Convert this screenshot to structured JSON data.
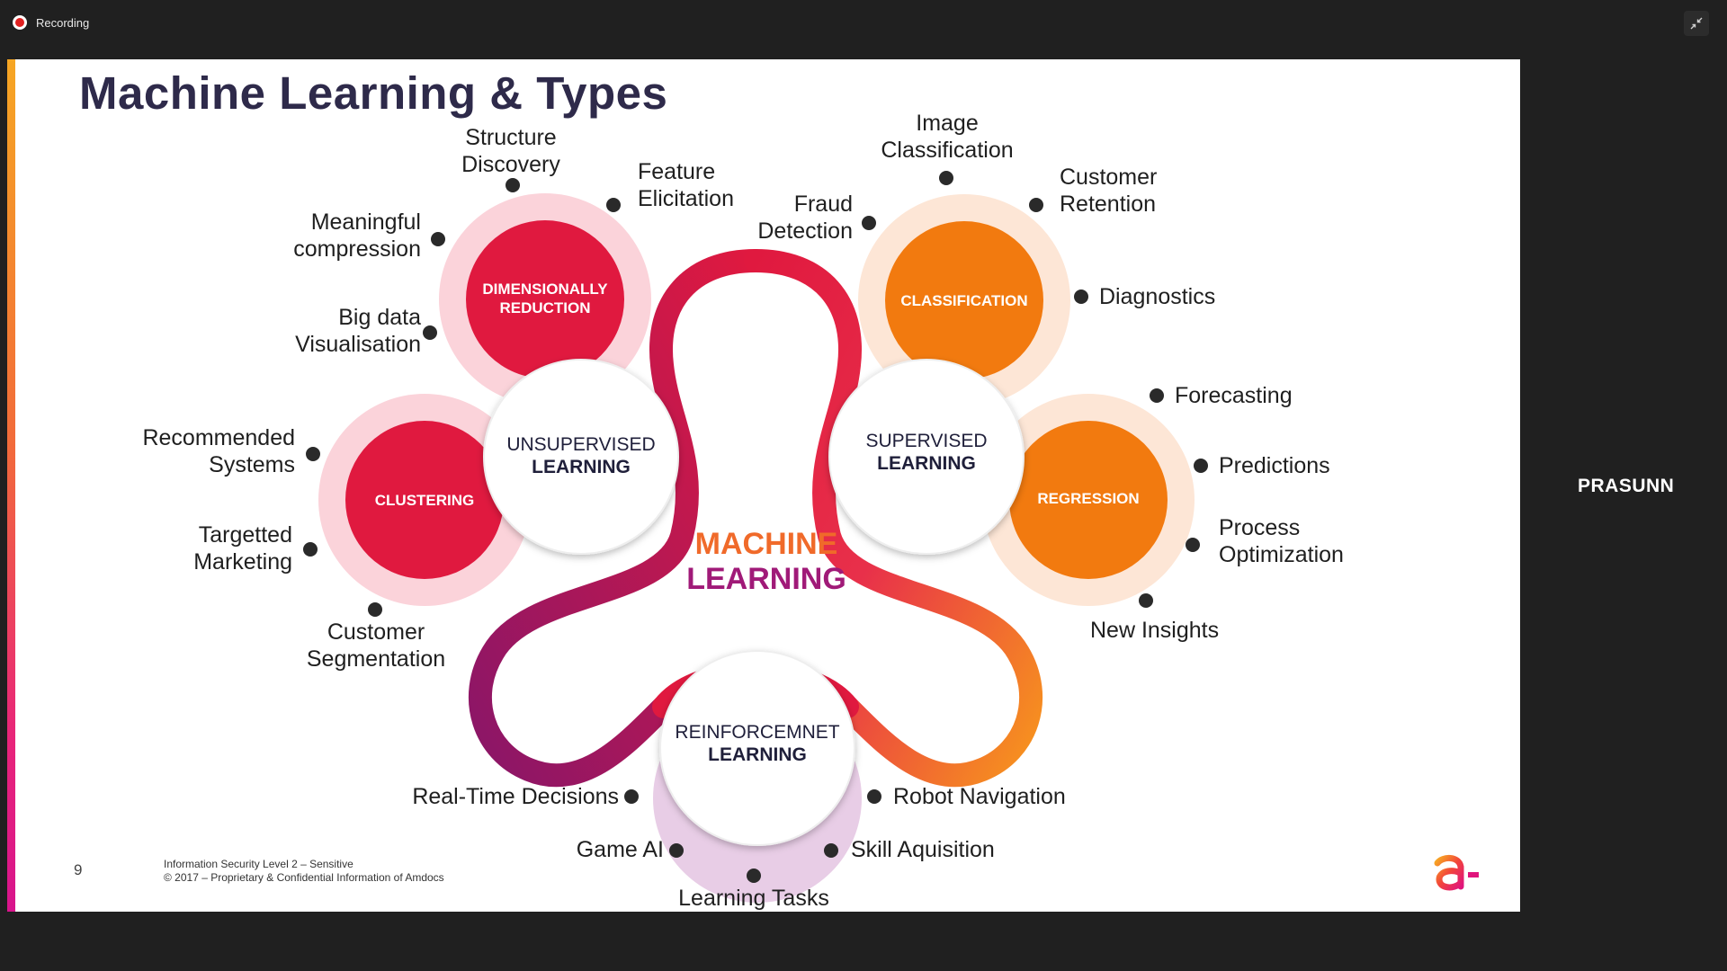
{
  "recording": {
    "label": "Recording"
  },
  "slide": {
    "title": "Machine Learning & Types",
    "center": {
      "line1": "MACHINE",
      "line2": "LEARNING"
    },
    "hubs": {
      "unsupervised": {
        "line1": "UNSUPERVISED",
        "line2": "LEARNING"
      },
      "supervised": {
        "line1": "SUPERVISED",
        "line2": "LEARNING"
      },
      "reinforcement": {
        "line1": "REINFORCEMNET",
        "line2": "LEARNING"
      }
    },
    "categories": {
      "dimensionality": {
        "line1": "DIMENSIONALLY",
        "line2": "REDUCTION"
      },
      "clustering": "CLUSTERING",
      "classification": "CLASSIFICATION",
      "regression": "REGRESSION"
    },
    "labels": {
      "structure_discovery": [
        "Structure",
        "Discovery"
      ],
      "feature_elicitation": [
        "Feature",
        "Elicitation"
      ],
      "meaningful_compression": [
        "Meaningful",
        "compression"
      ],
      "big_data_visualisation": [
        "Big data",
        "Visualisation"
      ],
      "recommended_systems": [
        "Recommended",
        "Systems"
      ],
      "targetted_marketing": [
        "Targetted",
        "Marketing"
      ],
      "customer_segmentation": [
        "Customer",
        "Segmentation"
      ],
      "image_classification": [
        "Image",
        "Classification"
      ],
      "fraud_detection": [
        "Fraud",
        "Detection"
      ],
      "customer_retention": [
        "Customer",
        "Retention"
      ],
      "diagnostics": "Diagnostics",
      "forecasting": "Forecasting",
      "predictions": "Predictions",
      "process_optimization": [
        "Process",
        "Optimization"
      ],
      "new_insights": "New Insights",
      "real_time_decisions": "Real-Time Decisions",
      "robot_navigation": "Robot Navigation",
      "game_ai": "Game AI",
      "skill_aquisition": "Skill Aquisition",
      "learning_tasks": "Learning Tasks"
    },
    "page_number": "9",
    "footer": {
      "line1": "Information Security Level 2 – Sensitive",
      "line2": "© 2017 – Proprietary & Confidential Information of Amdocs"
    }
  },
  "participant": {
    "name": "PRASUNN"
  },
  "colors": {
    "pink_ring": "#fbd3da",
    "red_circle": "#e0193f",
    "peach_ring": "#fde6d6",
    "orange_circle": "#f27a0f",
    "lilac_ring": "#e8cde6",
    "center_gradient_start": "#f58d1e",
    "center_gradient_end": "#9a1a7a"
  }
}
